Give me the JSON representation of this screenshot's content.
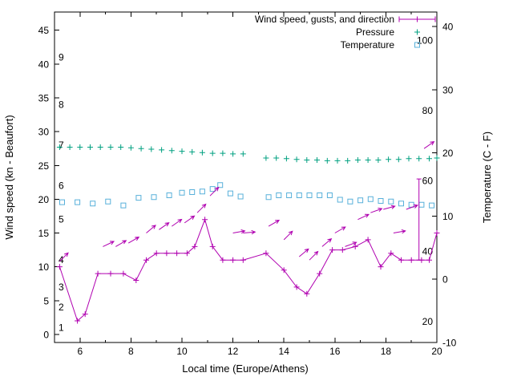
{
  "chart_data": {
    "type": "line",
    "title": "",
    "xlabel": "Local time (Europe/Athens)",
    "ylabel_left": "Wind speed (kn - Beaufort)",
    "ylabel_right": "Temperature (C - F)",
    "x_range": [
      5,
      20
    ],
    "y_left_range": [
      -1.2,
      47.7
    ],
    "y_right_range": [
      -10,
      42.3
    ],
    "x_ticks": [
      6,
      8,
      10,
      12,
      14,
      16,
      18,
      20
    ],
    "x_minor_ticks": [
      7,
      9,
      11,
      13,
      15,
      17,
      19
    ],
    "y_left_ticks": [
      0,
      5,
      10,
      15,
      20,
      25,
      30,
      35,
      40,
      45
    ],
    "y_right_ticks": [
      -10,
      0,
      10,
      20,
      30,
      40
    ],
    "beaufort_scale_labels": [
      {
        "text": "1",
        "kn": 1
      },
      {
        "text": "2",
        "kn": 4
      },
      {
        "text": "3",
        "kn": 7
      },
      {
        "text": "4",
        "kn": 11
      },
      {
        "text": "5",
        "kn": 17
      },
      {
        "text": "6",
        "kn": 22
      },
      {
        "text": "7",
        "kn": 28
      },
      {
        "text": "8",
        "kn": 34
      },
      {
        "text": "9",
        "kn": 41
      }
    ],
    "fahrenheit_scale_labels": [
      {
        "text": "20",
        "c": -6.7
      },
      {
        "text": "40",
        "c": 4.4
      },
      {
        "text": "60",
        "c": 15.6
      },
      {
        "text": "80",
        "c": 26.7
      },
      {
        "text": "100",
        "c": 37.8
      }
    ],
    "colors": {
      "wind": "#b000b0",
      "pressure": "#00a080",
      "temperature": "#58b0da",
      "axis": "#000000",
      "background": "#ffffff"
    },
    "legend": [
      {
        "label": "Wind speed, gusts, and direction",
        "series": "wind",
        "marker": "errorbar-line"
      },
      {
        "label": "Pressure",
        "series": "pressure",
        "marker": "plus"
      },
      {
        "label": "Temperature",
        "series": "temperature",
        "marker": "square"
      }
    ],
    "series": {
      "wind_speed_kn": [
        [
          5.2,
          10
        ],
        [
          5.9,
          2
        ],
        [
          6.2,
          3
        ],
        [
          6.7,
          9
        ],
        [
          7.2,
          9
        ],
        [
          7.7,
          9
        ],
        [
          8.2,
          8
        ],
        [
          8.6,
          11
        ],
        [
          9,
          12
        ],
        [
          9.4,
          12
        ],
        [
          9.8,
          12
        ],
        [
          10.2,
          12
        ],
        [
          10.5,
          13
        ],
        [
          10.9,
          17
        ],
        [
          11.2,
          13
        ],
        [
          11.6,
          11
        ],
        [
          12,
          11
        ],
        [
          12.4,
          11
        ],
        [
          13.3,
          12
        ],
        [
          14,
          9.5
        ],
        [
          14.5,
          7
        ],
        [
          14.9,
          6
        ],
        [
          15.4,
          9
        ],
        [
          15.9,
          12.5
        ],
        [
          16.3,
          12.5
        ],
        [
          16.8,
          13
        ],
        [
          17.3,
          14
        ],
        [
          17.8,
          10
        ],
        [
          18.2,
          12
        ],
        [
          18.6,
          11
        ],
        [
          19,
          11
        ],
        [
          19.4,
          11
        ],
        [
          19.7,
          11
        ],
        [
          20,
          15
        ]
      ],
      "wind_gust_bar": {
        "x": 19.3,
        "from_kn": 11,
        "to_kn": 23
      },
      "wind_direction_arrows": [
        [
          5.2,
          10.8,
          45
        ],
        [
          6.9,
          13,
          25
        ],
        [
          7.4,
          13,
          30
        ],
        [
          7.9,
          13.5,
          30
        ],
        [
          8.6,
          15,
          40
        ],
        [
          9.1,
          15.5,
          35
        ],
        [
          9.6,
          16,
          35
        ],
        [
          10.1,
          16.5,
          35
        ],
        [
          10.6,
          18,
          45
        ],
        [
          11.1,
          20.5,
          45
        ],
        [
          12,
          15,
          10
        ],
        [
          12.4,
          15,
          5
        ],
        [
          13.4,
          16,
          30
        ],
        [
          14,
          14,
          45
        ],
        [
          14.6,
          11.5,
          40
        ],
        [
          15,
          11,
          45
        ],
        [
          15.5,
          13,
          40
        ],
        [
          16,
          15,
          30
        ],
        [
          16.4,
          13,
          20
        ],
        [
          16.9,
          17,
          25
        ],
        [
          17.4,
          18,
          20
        ],
        [
          17.9,
          18.5,
          15
        ],
        [
          18.3,
          15,
          10
        ],
        [
          18.8,
          18.5,
          20
        ],
        [
          19.5,
          27.5,
          35
        ]
      ],
      "pressure": [
        [
          5.2,
          27.7
        ],
        [
          5.6,
          27.7
        ],
        [
          6,
          27.7
        ],
        [
          6.4,
          27.7
        ],
        [
          6.8,
          27.7
        ],
        [
          7.2,
          27.7
        ],
        [
          7.6,
          27.7
        ],
        [
          8,
          27.6
        ],
        [
          8.4,
          27.5
        ],
        [
          8.8,
          27.4
        ],
        [
          9.2,
          27.3
        ],
        [
          9.6,
          27.2
        ],
        [
          10,
          27.1
        ],
        [
          10.4,
          27
        ],
        [
          10.8,
          26.9
        ],
        [
          11.2,
          26.8
        ],
        [
          11.6,
          26.8
        ],
        [
          12,
          26.7
        ],
        [
          12.4,
          26.7
        ],
        [
          13.3,
          26.1
        ],
        [
          13.7,
          26.1
        ],
        [
          14.1,
          26
        ],
        [
          14.5,
          25.9
        ],
        [
          14.9,
          25.8
        ],
        [
          15.3,
          25.8
        ],
        [
          15.7,
          25.7
        ],
        [
          16.1,
          25.7
        ],
        [
          16.5,
          25.7
        ],
        [
          16.9,
          25.8
        ],
        [
          17.3,
          25.8
        ],
        [
          17.7,
          25.8
        ],
        [
          18.1,
          25.9
        ],
        [
          18.5,
          25.9
        ],
        [
          18.9,
          26
        ],
        [
          19.3,
          26
        ],
        [
          19.7,
          26
        ],
        [
          20,
          26.1
        ]
      ],
      "temperature_c": [
        [
          5.3,
          12.2
        ],
        [
          5.9,
          12.2
        ],
        [
          6.5,
          12
        ],
        [
          7.1,
          12.3
        ],
        [
          7.7,
          11.7
        ],
        [
          8.3,
          12.9
        ],
        [
          8.9,
          13
        ],
        [
          9.5,
          13.3
        ],
        [
          10,
          13.7
        ],
        [
          10.4,
          13.8
        ],
        [
          10.8,
          13.9
        ],
        [
          11.2,
          14.3
        ],
        [
          11.5,
          14.9
        ],
        [
          11.9,
          13.6
        ],
        [
          12.3,
          13.1
        ],
        [
          13.4,
          13
        ],
        [
          13.8,
          13.3
        ],
        [
          14.2,
          13.3
        ],
        [
          14.6,
          13.3
        ],
        [
          15,
          13.3
        ],
        [
          15.4,
          13.3
        ],
        [
          15.8,
          13.3
        ],
        [
          16.2,
          12.6
        ],
        [
          16.6,
          12.3
        ],
        [
          17,
          12.5
        ],
        [
          17.4,
          12.7
        ],
        [
          17.8,
          12.4
        ],
        [
          18.2,
          12.3
        ],
        [
          18.6,
          12
        ],
        [
          19,
          11.8
        ],
        [
          19.4,
          11.8
        ],
        [
          19.8,
          11.7
        ]
      ]
    }
  }
}
